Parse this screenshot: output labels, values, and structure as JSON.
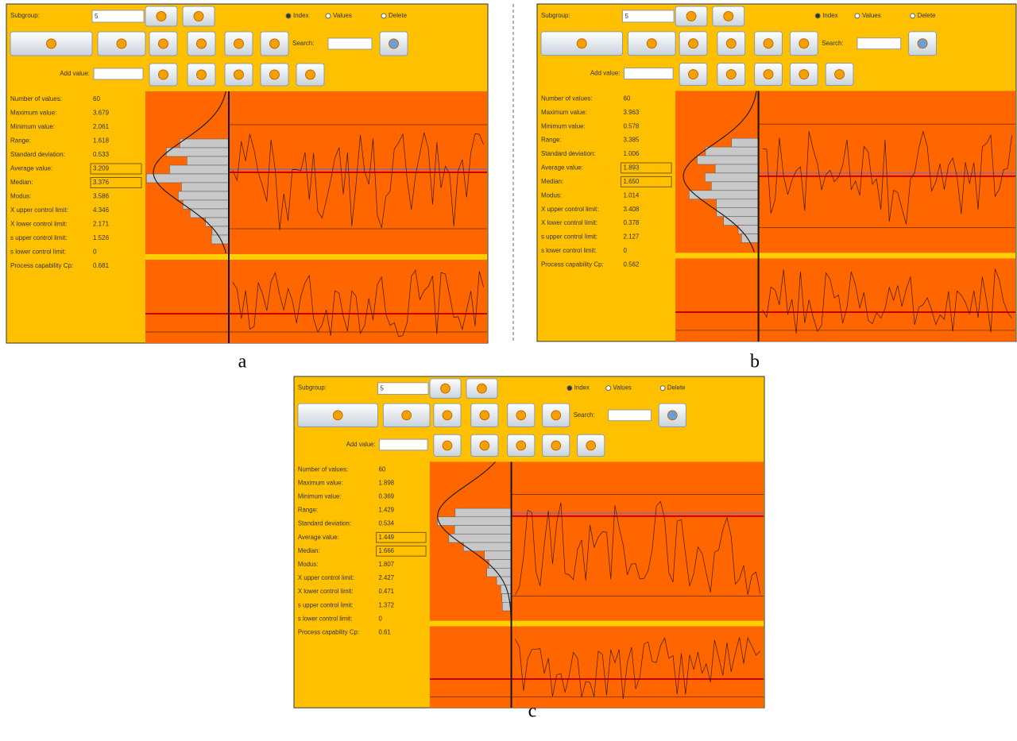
{
  "panels": [
    {
      "caption": "a",
      "subgroup_label": "Subgroup:",
      "subgroup_value": "5",
      "radios": [
        "Index",
        "Values",
        "Delete"
      ],
      "search_label": "Search:",
      "add_value_label": "Add value:",
      "stats": [
        {
          "label": "Number of values:",
          "value": "60"
        },
        {
          "label": "Maximum value:",
          "value": "3.679"
        },
        {
          "label": "Minimum value:",
          "value": "2.061"
        },
        {
          "label": "Range:",
          "value": "1.618"
        },
        {
          "label": "Standard deviation:",
          "value": "0.533"
        },
        {
          "label": "Average value:",
          "value": "3.209"
        },
        {
          "label": "Median:",
          "value": "3.376"
        },
        {
          "label": "Modus:",
          "value": "3.586"
        },
        {
          "label": "X upper control limit:",
          "value": "4.346"
        },
        {
          "label": "X lower control limit:",
          "value": "2.171"
        },
        {
          "label": "s upper control limit:",
          "value": "1.526"
        },
        {
          "label": "s lower control limit:",
          "value": "0"
        },
        {
          "label": "Process capability Cp:",
          "value": "0.681"
        }
      ]
    },
    {
      "caption": "b",
      "subgroup_label": "Subgroup:",
      "subgroup_value": "5",
      "radios": [
        "Index",
        "Values",
        "Delete"
      ],
      "search_label": "Search:",
      "add_value_label": "Add value:",
      "stats": [
        {
          "label": "Number of values:",
          "value": "60"
        },
        {
          "label": "Maximum value:",
          "value": "3.963"
        },
        {
          "label": "Minimum value:",
          "value": "0.578"
        },
        {
          "label": "Range:",
          "value": "3.385"
        },
        {
          "label": "Standard deviation:",
          "value": "1.006"
        },
        {
          "label": "Average value:",
          "value": "1.893"
        },
        {
          "label": "Median:",
          "value": "1.650"
        },
        {
          "label": "Modus:",
          "value": "1.014"
        },
        {
          "label": "X upper control limit:",
          "value": "3.408"
        },
        {
          "label": "X lower control limit:",
          "value": "0.378"
        },
        {
          "label": "s upper control limit:",
          "value": "2.127"
        },
        {
          "label": "s lower control limit:",
          "value": "0"
        },
        {
          "label": "Process capability Cp:",
          "value": "0.562"
        }
      ]
    },
    {
      "caption": "c",
      "subgroup_label": "Subgroup:",
      "subgroup_value": "5",
      "radios": [
        "Index",
        "Values",
        "Delete"
      ],
      "search_label": "Search:",
      "add_value_label": "Add value:",
      "stats": [
        {
          "label": "Number of values:",
          "value": "60"
        },
        {
          "label": "Maximum value:",
          "value": "1.898"
        },
        {
          "label": "Minimum value:",
          "value": "0.369"
        },
        {
          "label": "Range:",
          "value": "1.429"
        },
        {
          "label": "Standard deviation:",
          "value": "0.534"
        },
        {
          "label": "Average value:",
          "value": "1.449"
        },
        {
          "label": "Median:",
          "value": "1.666"
        },
        {
          "label": "Modus:",
          "value": "1.807"
        },
        {
          "label": "X upper control limit:",
          "value": "2.427"
        },
        {
          "label": "X lower control limit:",
          "value": "0.471"
        },
        {
          "label": "s upper control limit:",
          "value": "1.372"
        },
        {
          "label": "s lower control limit:",
          "value": "0"
        },
        {
          "label": "Process capability Cp:",
          "value": "0.61"
        }
      ]
    }
  ]
}
